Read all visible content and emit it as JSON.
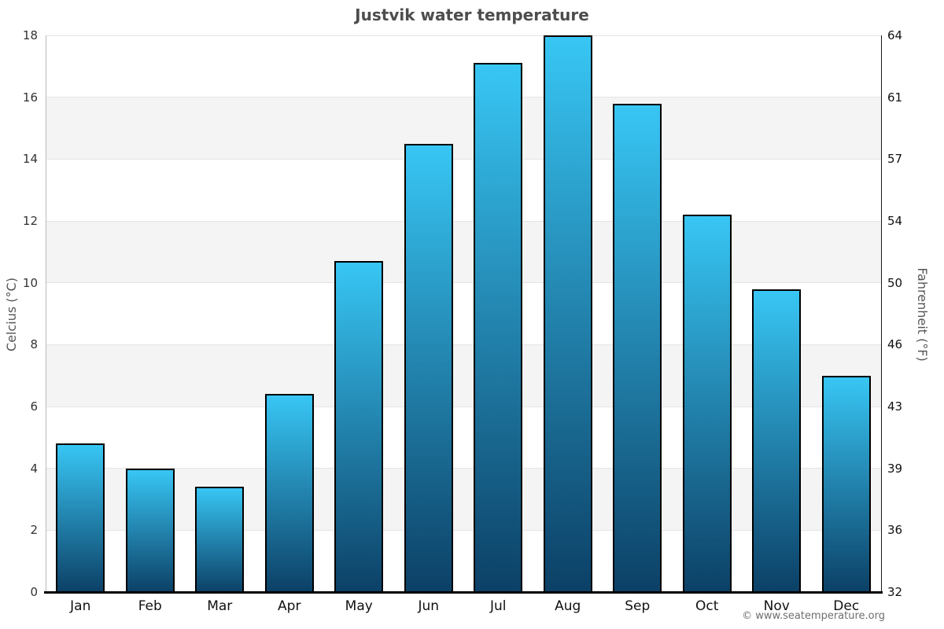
{
  "title": "Justvik water temperature",
  "attribution": "© www.seatemperature.org",
  "chart_data": {
    "type": "bar",
    "title": "Justvik water temperature",
    "categories": [
      "Jan",
      "Feb",
      "Mar",
      "Apr",
      "May",
      "Jun",
      "Jul",
      "Aug",
      "Sep",
      "Oct",
      "Nov",
      "Dec"
    ],
    "values": [
      4.8,
      4.0,
      3.4,
      6.4,
      10.7,
      14.5,
      17.1,
      18.0,
      15.8,
      12.2,
      9.8,
      7.0
    ],
    "series_name": "Water temperature",
    "xlabel": "",
    "ylabel_left": "Celcius (°C)",
    "ylabel_right": "Fahrenheit (°F)",
    "ylim": [
      0,
      18
    ],
    "yticks": [
      {
        "celsius": "18",
        "fahrenheit": "64"
      },
      {
        "celsius": "16",
        "fahrenheit": "61"
      },
      {
        "celsius": "14",
        "fahrenheit": "57"
      },
      {
        "celsius": "12",
        "fahrenheit": "54"
      },
      {
        "celsius": "10",
        "fahrenheit": "50"
      },
      {
        "celsius": "8",
        "fahrenheit": "46"
      },
      {
        "celsius": "6",
        "fahrenheit": "43"
      },
      {
        "celsius": "4",
        "fahrenheit": "39"
      },
      {
        "celsius": "2",
        "fahrenheit": "36"
      },
      {
        "celsius": "0",
        "fahrenheit": "32"
      }
    ],
    "grid": "horizontal gridlines with alternating shaded bands every 2 °C",
    "band_tops_celsius": [
      16,
      12,
      8,
      4
    ],
    "legend": "none",
    "colors": {
      "bar_gradient_top": "#38c6f4",
      "bar_gradient_bottom": "#0c4066",
      "bar_border": "#000000",
      "band_fill": "#f4f4f4",
      "gridline": "#e4e4e4",
      "title_text": "#4d4d4d",
      "axis_title_text": "#555555",
      "tick_text": "#333333",
      "attribution_text": "#6e6e6e"
    }
  }
}
